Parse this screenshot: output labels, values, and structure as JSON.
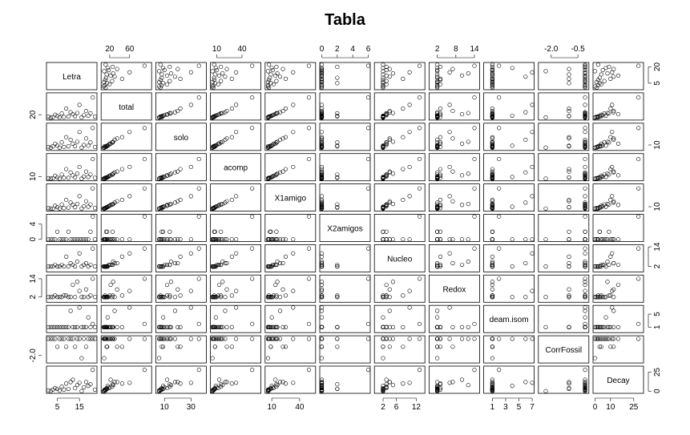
{
  "chart_data": {
    "type": "scatter",
    "title": "Tabla",
    "variables": [
      "Letra",
      "total",
      "solo",
      "acomp",
      "X1amigo",
      "X2amigos",
      "Nucleo",
      "Redox",
      "deam.isom",
      "CorrFossil",
      "Decay"
    ],
    "ranges": [
      [
        1,
        22
      ],
      [
        7,
        100
      ],
      [
        5,
        40
      ],
      [
        5,
        60
      ],
      [
        5,
        55
      ],
      [
        0,
        6
      ],
      [
        0,
        14
      ],
      [
        0,
        15
      ],
      [
        0,
        7
      ],
      [
        -2.6,
        0
      ],
      [
        0,
        30
      ]
    ],
    "ticks": {
      "Letra": {
        "side": "bottom",
        "values": [
          5,
          15
        ],
        "labels": [
          "5",
          "15"
        ]
      },
      "total": {
        "side": "top",
        "values": [
          20,
          60
        ],
        "labels": [
          "20",
          "60"
        ]
      },
      "solo": {
        "side": "bottom",
        "values": [
          10,
          30
        ],
        "labels": [
          "10",
          "30"
        ]
      },
      "acomp": {
        "side": "top",
        "values": [
          10,
          40
        ],
        "labels": [
          "10",
          "40"
        ]
      },
      "X1amigo": {
        "side": "bottom",
        "values": [
          10,
          40
        ],
        "labels": [
          "10",
          "40"
        ]
      },
      "X2amigos": {
        "side": "top",
        "values": [
          0,
          2,
          4,
          6
        ],
        "labels": [
          "0",
          "2",
          "4",
          "6"
        ]
      },
      "Nucleo": {
        "side": "bottom",
        "values": [
          2,
          6,
          12
        ],
        "labels": [
          "2",
          "6",
          "12"
        ]
      },
      "Redox": {
        "side": "top",
        "values": [
          2,
          8,
          14
        ],
        "labels": [
          "2",
          "8",
          "14"
        ]
      },
      "deam.isom": {
        "side": "bottom",
        "values": [
          1,
          3,
          5,
          7
        ],
        "labels": [
          "1",
          "3",
          "5",
          "7"
        ]
      },
      "CorrFossil": {
        "side": "top",
        "values": [
          -2.0,
          -0.5
        ],
        "labels": [
          "-2.0",
          "-0.5"
        ]
      },
      "Decay": {
        "side": "bottom",
        "values": [
          0,
          10,
          25
        ],
        "labels": [
          "0",
          "10",
          "25"
        ]
      }
    },
    "yticks": {
      "Letra": {
        "side": "right",
        "values": [
          5,
          20
        ],
        "labels": [
          "5",
          "20"
        ]
      },
      "total": {
        "side": "left",
        "values": [
          20
        ],
        "labels": [
          "20"
        ]
      },
      "solo": {
        "side": "right",
        "values": [
          10
        ],
        "labels": [
          "10"
        ]
      },
      "acomp": {
        "side": "left",
        "values": [
          10
        ],
        "labels": [
          "10"
        ]
      },
      "X1amigo": {
        "side": "right",
        "values": [
          10
        ],
        "labels": [
          "10"
        ]
      },
      "X2amigos": {
        "side": "left",
        "values": [
          0,
          4
        ],
        "labels": [
          "0",
          "4"
        ]
      },
      "Nucleo": {
        "side": "right",
        "values": [
          2,
          14
        ],
        "labels": [
          "2",
          "14"
        ]
      },
      "Redox": {
        "side": "left",
        "values": [
          2,
          14
        ],
        "labels": [
          "2",
          "14"
        ]
      },
      "deam.isom": {
        "side": "right",
        "values": [
          1,
          5
        ],
        "labels": [
          "1",
          "5"
        ]
      },
      "CorrFossil": {
        "side": "left",
        "values": [
          -2.0
        ],
        "labels": [
          "-2.0"
        ]
      },
      "Decay": {
        "side": "right",
        "values": [
          0,
          25
        ],
        "labels": [
          "0",
          "25"
        ]
      }
    },
    "observations": [
      {
        "Letra": 1,
        "total": 12,
        "solo": 7,
        "acomp": 6,
        "X1amigo": 7,
        "X2amigos": 0,
        "Nucleo": 2,
        "Redox": 2,
        "deam.isom": 1,
        "CorrFossil": -0.1,
        "Decay": 1
      },
      {
        "Letra": 2,
        "total": 8,
        "solo": 6,
        "acomp": 5,
        "X1amigo": 6,
        "X2amigos": 0,
        "Nucleo": 2,
        "Redox": 2,
        "deam.isom": 1,
        "CorrFossil": -0.1,
        "Decay": 0
      },
      {
        "Letra": 3,
        "total": 10,
        "solo": 8,
        "acomp": 6,
        "X1amigo": 6,
        "X2amigos": 0,
        "Nucleo": 2,
        "Redox": 2,
        "deam.isom": 1,
        "CorrFossil": -0.1,
        "Decay": 2
      },
      {
        "Letra": 4,
        "total": 20,
        "solo": 12,
        "acomp": 12,
        "X1amigo": 12,
        "X2amigos": 0,
        "Nucleo": 3,
        "Redox": 3,
        "deam.isom": 1,
        "CorrFossil": -0.1,
        "Decay": 4
      },
      {
        "Letra": 5,
        "total": 15,
        "solo": 9,
        "acomp": 8,
        "X1amigo": 9,
        "X2amigos": 2,
        "Nucleo": 2,
        "Redox": 2,
        "deam.isom": 1,
        "CorrFossil": -1.0,
        "Decay": 3
      },
      {
        "Letra": 6,
        "total": 9,
        "solo": 6,
        "acomp": 5,
        "X1amigo": 6,
        "X2amigos": 0,
        "Nucleo": 2,
        "Redox": 2,
        "deam.isom": 1,
        "CorrFossil": -0.1,
        "Decay": 1
      },
      {
        "Letra": 7,
        "total": 25,
        "solo": 14,
        "acomp": 15,
        "X1amigo": 15,
        "X2amigos": 0,
        "Nucleo": 3,
        "Redox": 2,
        "deam.isom": 1,
        "CorrFossil": -0.1,
        "Decay": 6
      },
      {
        "Letra": 8,
        "total": 11,
        "solo": 7,
        "acomp": 7,
        "X1amigo": 7,
        "X2amigos": 0,
        "Nucleo": 2,
        "Redox": 3,
        "deam.isom": 1,
        "CorrFossil": -0.1,
        "Decay": 2
      },
      {
        "Letra": 9,
        "total": 45,
        "solo": 22,
        "acomp": 28,
        "X1amigo": 25,
        "X2amigos": 0,
        "Nucleo": 8,
        "Redox": 3,
        "deam.isom": 1,
        "CorrFossil": -1.0,
        "Decay": 10
      },
      {
        "Letra": 10,
        "total": 13,
        "solo": 8,
        "acomp": 7,
        "X1amigo": 8,
        "X2amigos": 2,
        "Nucleo": 2,
        "Redox": 2,
        "deam.isom": 1,
        "CorrFossil": -0.1,
        "Decay": 3
      },
      {
        "Letra": 11,
        "total": 30,
        "solo": 18,
        "acomp": 20,
        "X1amigo": 19,
        "X2amigos": 0,
        "Nucleo": 4,
        "Redox": 2,
        "deam.isom": 6,
        "CorrFossil": -0.1,
        "Decay": 12
      },
      {
        "Letra": 12,
        "total": 22,
        "solo": 12,
        "acomp": 13,
        "X1amigo": 14,
        "X2amigos": 0,
        "Nucleo": 3,
        "Redox": 10,
        "deam.isom": 1,
        "CorrFossil": -0.1,
        "Decay": 15
      },
      {
        "Letra": 13,
        "total": 14,
        "solo": 8,
        "acomp": 8,
        "X1amigo": 9,
        "X2amigos": 0,
        "Nucleo": 2,
        "Redox": 2,
        "deam.isom": 1,
        "CorrFossil": -1.0,
        "Decay": 4
      },
      {
        "Letra": 14,
        "total": 27,
        "solo": 15,
        "acomp": 17,
        "X1amigo": 16,
        "X2amigos": 0,
        "Nucleo": 5,
        "Redox": 12,
        "deam.isom": 1,
        "CorrFossil": -0.1,
        "Decay": 8
      },
      {
        "Letra": 15,
        "total": 60,
        "solo": 30,
        "acomp": 33,
        "X1amigo": 33,
        "X2amigos": 0,
        "Nucleo": 10,
        "Redox": 6,
        "deam.isom": 7,
        "CorrFossil": -0.1,
        "Decay": 11
      },
      {
        "Letra": 16,
        "total": 9,
        "solo": 6,
        "acomp": 5,
        "X1amigo": 6,
        "X2amigos": 0,
        "Nucleo": 2,
        "Redox": 2,
        "deam.isom": 1,
        "CorrFossil": -2.3,
        "Decay": 0
      },
      {
        "Letra": 17,
        "total": 18,
        "solo": 10,
        "acomp": 10,
        "X1amigo": 11,
        "X2amigos": 0,
        "Nucleo": 3,
        "Redox": 2,
        "deam.isom": 1,
        "CorrFossil": -0.1,
        "Decay": 5
      },
      {
        "Letra": 18,
        "total": 35,
        "solo": 20,
        "acomp": 22,
        "X1amigo": 22,
        "X2amigos": 0,
        "Nucleo": 4,
        "Redox": 7,
        "deam.isom": 1,
        "CorrFossil": -1.0,
        "Decay": 12
      },
      {
        "Letra": 19,
        "total": 16,
        "solo": 9,
        "acomp": 9,
        "X1amigo": 10,
        "X2amigos": 0,
        "Nucleo": 2,
        "Redox": 2,
        "deam.isom": 4,
        "CorrFossil": -0.1,
        "Decay": 7
      },
      {
        "Letra": 20,
        "total": 26,
        "solo": 14,
        "acomp": 15,
        "X1amigo": 15,
        "X2amigos": 2,
        "Nucleo": 3,
        "Redox": 3,
        "deam.isom": 1,
        "CorrFossil": -0.1,
        "Decay": 9
      },
      {
        "Letra": 21,
        "total": 90,
        "solo": 36,
        "acomp": 52,
        "X1amigo": 50,
        "X2amigos": 6,
        "Nucleo": 13,
        "Redox": 14,
        "deam.isom": 2,
        "CorrFossil": -0.1,
        "Decay": 28
      },
      {
        "Letra": 22,
        "total": 12,
        "solo": 7,
        "acomp": 7,
        "X1amigo": 7,
        "X2amigos": 0,
        "Nucleo": 2,
        "Redox": 2,
        "deam.isom": 1,
        "CorrFossil": -0.1,
        "Decay": 2
      }
    ]
  }
}
